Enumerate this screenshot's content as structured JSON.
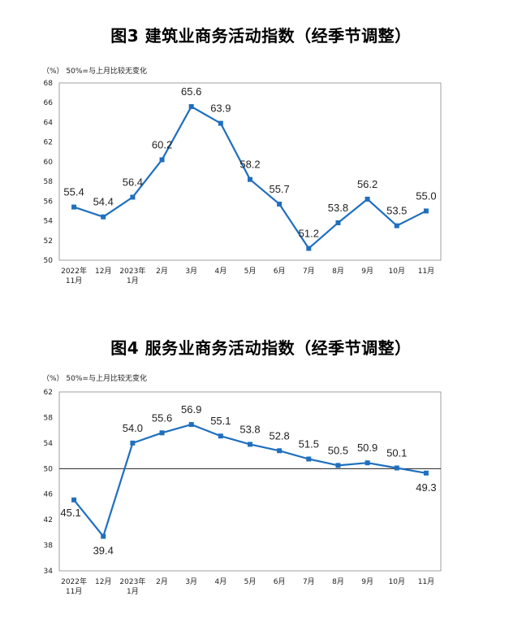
{
  "charts": [
    {
      "title": "图3  建筑业商务活动指数（经季节调整）",
      "unit_note": "（%）  50%=与上月比较无变化"
    },
    {
      "title": "图4  服务业商务活动指数（经季节调整）",
      "unit_note": "（%）  50%=与上月比较无变化"
    }
  ],
  "chart_data": [
    {
      "type": "line",
      "title": "图3  建筑业商务活动指数（经季节调整）",
      "ylabel": "（%）",
      "note": "50%=与上月比较无变化",
      "categories": [
        "2022年\n11月",
        "12月",
        "2023年\n1月",
        "2月",
        "3月",
        "4月",
        "5月",
        "6月",
        "7月",
        "8月",
        "9月",
        "10月",
        "11月"
      ],
      "values": [
        55.4,
        54.4,
        56.4,
        60.2,
        65.6,
        63.9,
        58.2,
        55.7,
        51.2,
        53.8,
        56.2,
        53.5,
        55.0
      ],
      "data_labels": [
        "55.4",
        "54.4",
        "56.4",
        "60.2",
        "65.6",
        "63.9",
        "58.2",
        "55.7",
        "51.2",
        "53.8",
        "56.2",
        "53.5",
        "55.0"
      ],
      "ylim": [
        50,
        68
      ],
      "yticks": [
        "50",
        "52",
        "54",
        "56",
        "58",
        "60",
        "62",
        "64",
        "66",
        "68"
      ],
      "color": "#1f6fbf",
      "grid": false
    },
    {
      "type": "line",
      "title": "图4  服务业商务活动指数（经季节调整）",
      "ylabel": "（%）",
      "note": "50%=与上月比较无变化",
      "categories": [
        "2022年\n11月",
        "12月",
        "2023年\n1月",
        "2月",
        "3月",
        "4月",
        "5月",
        "6月",
        "7月",
        "8月",
        "9月",
        "10月",
        "11月"
      ],
      "values": [
        45.1,
        39.4,
        54.0,
        55.6,
        56.9,
        55.1,
        53.8,
        52.8,
        51.5,
        50.5,
        50.9,
        50.1,
        49.3
      ],
      "data_labels": [
        "45.1",
        "39.4",
        "54.0",
        "55.6",
        "56.9",
        "55.1",
        "53.8",
        "52.8",
        "51.5",
        "50.5",
        "50.9",
        "50.1",
        "49.3"
      ],
      "ylim": [
        34,
        62
      ],
      "yticks": [
        "34",
        "38",
        "42",
        "46",
        "50",
        "54",
        "58",
        "62"
      ],
      "reference_line": 50,
      "color": "#1f6fbf",
      "grid": false
    }
  ]
}
